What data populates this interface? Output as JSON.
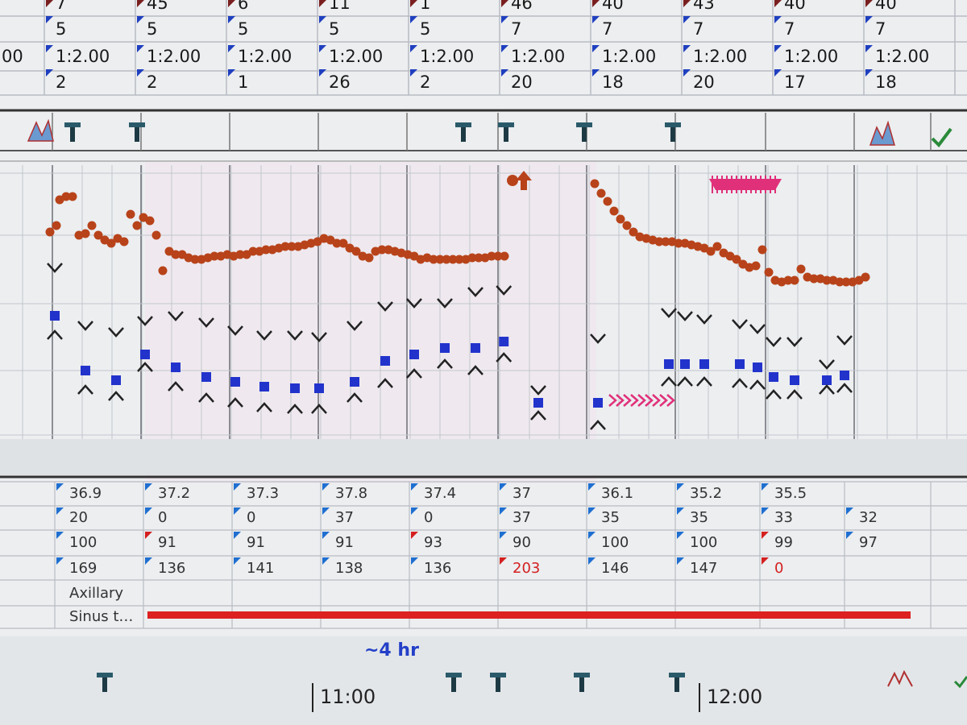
{
  "top_table": {
    "left_label": "00",
    "rows": [
      [
        "7",
        "45",
        "6",
        "11",
        "1",
        "46",
        "40",
        "43",
        "40",
        "40"
      ],
      [
        "5",
        "5",
        "5",
        "5",
        "5",
        "7",
        "7",
        "7",
        "7",
        "7"
      ],
      [
        "1:2.00",
        "1:2.00",
        "1:2.00",
        "1:2.00",
        "1:2.00",
        "1:2.00",
        "1:2.00",
        "1:2.00",
        "1:2.00",
        "1:2.00"
      ],
      [
        "2",
        "2",
        "1",
        "26",
        "2",
        "20",
        "18",
        "20",
        "17",
        "18"
      ]
    ],
    "marker_colors": [
      "#7a1f1f",
      "#1f3fbf",
      "#1f3fbf",
      "#1f3fbf"
    ]
  },
  "trend": {
    "colors": {
      "heart_rate": "#b8431a",
      "mean": "#2233cc",
      "caret": "#222222"
    },
    "heart_rate": {
      "x": [
        -41,
        -40,
        -39.5,
        -38.5,
        -37.5,
        -36.5,
        -35.5,
        -34.5,
        -33.5,
        -32.5,
        -31.5,
        -30.5,
        -29.5,
        -28.5,
        -27.5,
        -26.5,
        -25.5,
        -24.5,
        -23.5,
        -22.5,
        -21.5,
        -20.5,
        -19.5,
        -18.5,
        -17.5,
        -16.5,
        -15.5,
        -14.5,
        -13.5,
        -12.5,
        -11.5,
        -10.5,
        -9.5,
        -8.5,
        -7.5,
        -6.5,
        -5.5,
        -4.5,
        -3.5,
        -2.5,
        -1.5,
        -0.5,
        0.5,
        1.5,
        2.5,
        3.5,
        4.5,
        5.5,
        6.5,
        7.5,
        8.5,
        9.5,
        10.5,
        11.5,
        12.5,
        13.5,
        14.5,
        15.5,
        16.5,
        17.5,
        18.5,
        19.5,
        20.5,
        21.5,
        22.5,
        23.5,
        24.5,
        25.5,
        26.5,
        27.5,
        28.5,
        29.5,
        43.5,
        44.5,
        45.5,
        46.5,
        47.5,
        48.5,
        49.5,
        50.5,
        51.5,
        52.5,
        53.5,
        54.5,
        55.5,
        56.5,
        57.5,
        58.5,
        59.5,
        60.5,
        61.5,
        62.5,
        63.5,
        64.5,
        65.5,
        66.5,
        67.5,
        68.5,
        69.5,
        70.5,
        71.5,
        72.5,
        73.5,
        74.5,
        75.5,
        76.5,
        77.5,
        78.5,
        79.5,
        80.5,
        81.5,
        82.5,
        83.5,
        84.5,
        85.5
      ],
      "values": [
        136,
        140,
        156,
        158,
        158,
        134,
        135,
        140,
        134,
        131,
        129,
        132,
        130,
        147,
        140,
        145,
        143,
        134,
        112,
        124,
        122,
        122,
        120,
        119,
        119,
        120,
        121,
        121,
        122,
        121,
        122,
        122,
        124,
        124,
        125,
        125,
        126,
        127,
        127,
        127,
        128,
        129,
        130,
        132,
        131,
        129,
        129,
        126,
        124,
        121,
        120,
        124,
        125,
        125,
        124,
        123,
        122,
        121,
        119,
        120,
        119,
        119,
        119,
        119,
        119,
        119,
        120,
        120,
        120,
        121,
        121,
        121,
        166,
        160,
        155,
        149,
        144,
        140,
        136,
        133,
        132,
        131,
        130,
        130,
        130,
        129,
        129,
        128,
        127,
        126,
        124,
        127,
        123,
        121,
        119,
        116,
        114,
        115,
        125,
        111,
        106,
        105,
        106,
        106,
        113,
        108,
        107,
        107,
        106,
        106,
        105,
        105,
        105,
        106,
        108
      ]
    },
    "bp": {
      "x": [
        -40.25,
        -35.5,
        -30.75,
        -26.25,
        -21.5,
        -16.75,
        -12.25,
        -7.75,
        -3,
        0.75,
        6.25,
        11,
        15.5,
        20.25,
        25,
        29.4,
        34.75,
        44,
        55,
        57.5,
        60.5,
        66,
        68.75,
        71.25,
        74.5,
        79.5,
        82.25
      ],
      "systolic": [
        114,
        78,
        74,
        81,
        84,
        80,
        75,
        72,
        72,
        71,
        78,
        90,
        92,
        92,
        99,
        100,
        38,
        70,
        86,
        84,
        82,
        79,
        76,
        68,
        68,
        54,
        69
      ],
      "mean": [
        84,
        50,
        44,
        60,
        52,
        46,
        43,
        40,
        39,
        39,
        43,
        56,
        60,
        64,
        64,
        68,
        30,
        30,
        54,
        54,
        54,
        54,
        52,
        46,
        44,
        44,
        47
      ],
      "diastolic": [
        72,
        38,
        34,
        52,
        40,
        33,
        30,
        27,
        26,
        26,
        33,
        42,
        48,
        54,
        50,
        58,
        22,
        16,
        43,
        43,
        43,
        42,
        41,
        35,
        35,
        38,
        39
      ]
    }
  },
  "bottom_table": {
    "rows": [
      [
        "36.9",
        "37.2",
        "37.3",
        "37.8",
        "37.4",
        "37",
        "36.1",
        "35.2",
        "35.5",
        null
      ],
      [
        "20",
        "0",
        "0",
        "37",
        "0",
        "37",
        "35",
        "35",
        "33",
        "32"
      ],
      [
        "100",
        {
          "text": "91",
          "flag": "#d42020"
        },
        "91",
        "91",
        {
          "text": "93",
          "flag": "#d42020"
        },
        "90",
        "100",
        "100",
        {
          "text": "99",
          "flag": "#d42020"
        },
        "97"
      ],
      [
        "169",
        "136",
        "141",
        "138",
        "136",
        {
          "text": "203",
          "flag": "#d42020",
          "text_color": "#d42020"
        },
        "146",
        "147",
        {
          "text": "0",
          "flag": "#d42020",
          "text_color": "#d42020"
        },
        null
      ]
    ],
    "labels": [
      "Axillary",
      "Sinus t…"
    ],
    "rhythm_color": "#dd2020"
  },
  "duration_note": "~4 hr",
  "timeline": [
    {
      "label": "11:00",
      "minute": 0
    },
    {
      "label": "12:00",
      "minute": 60
    }
  ]
}
